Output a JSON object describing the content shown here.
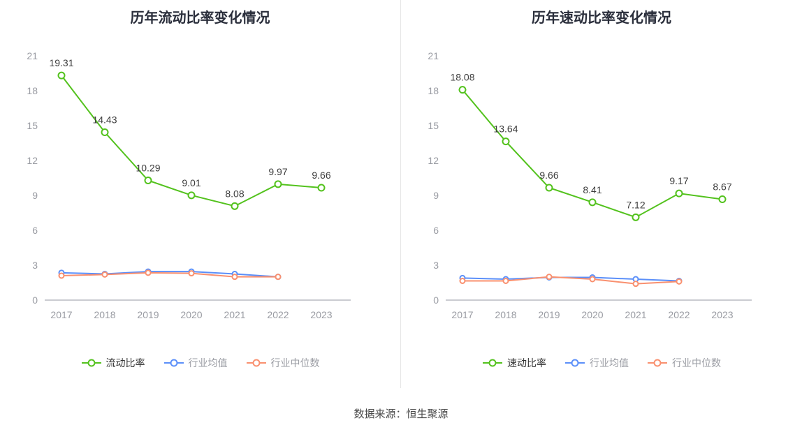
{
  "source_note": "数据来源：恒生聚源",
  "colors": {
    "green": "#53c21d",
    "blue": "#5b8ff9",
    "orange": "#f9906f",
    "axis_line": "#b9bcc2",
    "tick_text": "#9a9ca3",
    "data_label": "#3d3d3d",
    "title_text": "#2a2e3b",
    "legend_primary_text": "#333333",
    "legend_secondary_text": "#9a9ca3"
  },
  "chart_data": [
    {
      "type": "line",
      "title": "历年流动比率变化情况",
      "categories": [
        "2017",
        "2018",
        "2019",
        "2020",
        "2021",
        "2022",
        "2023"
      ],
      "ylim": [
        0,
        21
      ],
      "yticks": [
        0,
        3,
        6,
        9,
        12,
        15,
        18,
        21
      ],
      "grid": false,
      "legend_position": "bottom",
      "series": [
        {
          "name": "流动比率",
          "color_key": "green",
          "labels": true,
          "values": [
            19.31,
            14.43,
            10.29,
            9.01,
            8.08,
            9.97,
            9.66
          ]
        },
        {
          "name": "行业均值",
          "color_key": "blue",
          "labels": false,
          "values": [
            2.35,
            2.25,
            2.45,
            2.45,
            2.25,
            2.0,
            null
          ]
        },
        {
          "name": "行业中位数",
          "color_key": "orange",
          "labels": false,
          "values": [
            2.1,
            2.2,
            2.35,
            2.3,
            2.0,
            2.0,
            null
          ]
        }
      ]
    },
    {
      "type": "line",
      "title": "历年速动比率变化情况",
      "categories": [
        "2017",
        "2018",
        "2019",
        "2020",
        "2021",
        "2022",
        "2023"
      ],
      "ylim": [
        0,
        21
      ],
      "yticks": [
        0,
        3,
        6,
        9,
        12,
        15,
        18,
        21
      ],
      "grid": false,
      "legend_position": "bottom",
      "series": [
        {
          "name": "速动比率",
          "color_key": "green",
          "labels": true,
          "values": [
            18.08,
            13.64,
            9.66,
            8.41,
            7.12,
            9.17,
            8.67
          ]
        },
        {
          "name": "行业均值",
          "color_key": "blue",
          "labels": false,
          "values": [
            1.9,
            1.8,
            1.95,
            1.95,
            1.8,
            1.65,
            null
          ]
        },
        {
          "name": "行业中位数",
          "color_key": "orange",
          "labels": false,
          "values": [
            1.65,
            1.65,
            2.0,
            1.8,
            1.4,
            1.6,
            null
          ]
        }
      ]
    }
  ]
}
